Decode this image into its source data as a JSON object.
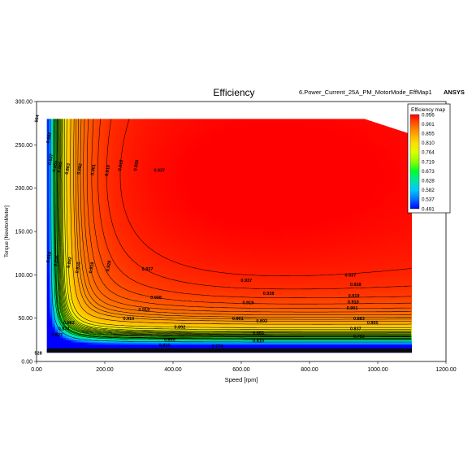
{
  "chart_data": {
    "type": "heatmap",
    "title": "Efficiency",
    "subtitle": "6.Power_Current_25A_PM_MotorMode_EffMap1",
    "brand": "ANSYS",
    "xlabel": "Speed [rpm]",
    "ylabel": "Torque [NewtonMeter]",
    "xlim": [
      0,
      1200
    ],
    "ylim": [
      0,
      300
    ],
    "xticks": [
      "0.00",
      "200.00",
      "400.00",
      "600.00",
      "800.00",
      "1000.00",
      "1200.00"
    ],
    "yticks": [
      "0.00",
      "50.00",
      "100.00",
      "150.00",
      "200.00",
      "250.00",
      "300.00"
    ],
    "grid": false,
    "legend": {
      "title": "Efficiency map",
      "placement": "top-right",
      "entries": [
        {
          "label": "0.956",
          "color": "#ff0000"
        },
        {
          "label": "0.901",
          "color": "#ff5a00"
        },
        {
          "label": "0.855",
          "color": "#ffa000"
        },
        {
          "label": "0.810",
          "color": "#ffdc00"
        },
        {
          "label": "0.764",
          "color": "#dcff00"
        },
        {
          "label": "0.719",
          "color": "#8cff00"
        },
        {
          "label": "0.673",
          "color": "#00ff28"
        },
        {
          "label": "0.628",
          "color": "#00e6a0"
        },
        {
          "label": "0.582",
          "color": "#00c8ff"
        },
        {
          "label": "0.537",
          "color": "#0070ff"
        },
        {
          "label": "0.491",
          "color": "#0000ff"
        }
      ]
    },
    "data_region": {
      "speed_range": [
        30,
        1100
      ],
      "torque_range": [
        10,
        280
      ],
      "max_torque_corner": {
        "speed": 960,
        "torque_start": 280,
        "speed_end": 1100,
        "torque_end": 262
      }
    },
    "contour_levels": [
      0.582,
      0.637,
      0.655,
      0.665,
      0.674,
      0.692,
      0.701,
      0.71,
      0.719,
      0.728,
      0.737,
      0.746,
      0.755,
      0.764,
      0.774,
      0.792,
      0.81,
      0.837,
      0.855,
      0.865,
      0.874,
      0.883,
      0.892,
      0.901,
      0.91,
      0.919,
      0.928,
      0.937
    ],
    "contour_labels": [
      {
        "text": "564",
        "speed": 5,
        "torque": 280
      },
      {
        "text": "0.582",
        "speed": 40,
        "torque": 258
      },
      {
        "text": "0.637",
        "speed": 45,
        "torque": 233
      },
      {
        "text": "0.855",
        "speed": 58,
        "torque": 225
      },
      {
        "text": "0.865",
        "speed": 72,
        "torque": 224
      },
      {
        "text": "0.883",
        "speed": 95,
        "torque": 222
      },
      {
        "text": "0.892",
        "speed": 130,
        "torque": 222
      },
      {
        "text": "0.901",
        "speed": 170,
        "torque": 221
      },
      {
        "text": "0.910",
        "speed": 212,
        "torque": 220
      },
      {
        "text": "0.919",
        "speed": 250,
        "torque": 226
      },
      {
        "text": "0.928",
        "speed": 296,
        "torque": 226
      },
      {
        "text": "0.937",
        "speed": 360,
        "torque": 219
      },
      {
        "text": "0.919",
        "speed": 40,
        "torque": 120
      },
      {
        "text": "0.855",
        "speed": 62,
        "torque": 116
      },
      {
        "text": "0.892",
        "speed": 100,
        "torque": 114
      },
      {
        "text": "0.910",
        "speed": 125,
        "torque": 108
      },
      {
        "text": "0.919",
        "speed": 165,
        "torque": 108
      },
      {
        "text": "0.928",
        "speed": 215,
        "torque": 110
      },
      {
        "text": "0.937",
        "speed": 325,
        "torque": 105
      },
      {
        "text": "0.937",
        "speed": 615,
        "torque": 92
      },
      {
        "text": "0.928",
        "speed": 680,
        "torque": 77
      },
      {
        "text": "0.919",
        "speed": 620,
        "torque": 66
      },
      {
        "text": "0.901",
        "speed": 590,
        "torque": 48
      },
      {
        "text": "0.893",
        "speed": 660,
        "torque": 45
      },
      {
        "text": "0.855",
        "speed": 650,
        "torque": 31
      },
      {
        "text": "0.810",
        "speed": 650,
        "torque": 22
      },
      {
        "text": "0.774",
        "speed": 530,
        "torque": 16
      },
      {
        "text": "0.928",
        "speed": 350,
        "torque": 72
      },
      {
        "text": "0.919",
        "speed": 315,
        "torque": 58
      },
      {
        "text": "0.910",
        "speed": 270,
        "torque": 48
      },
      {
        "text": "0.892",
        "speed": 420,
        "torque": 38
      },
      {
        "text": "0.865",
        "speed": 390,
        "torque": 24
      },
      {
        "text": "0.810",
        "speed": 375,
        "torque": 17
      },
      {
        "text": "0.892",
        "speed": 95,
        "torque": 43
      },
      {
        "text": "0.874",
        "speed": 80,
        "torque": 36
      },
      {
        "text": "0.827",
        "speed": 60,
        "torque": 29
      },
      {
        "text": "0.937",
        "speed": 920,
        "torque": 98
      },
      {
        "text": "0.928",
        "speed": 935,
        "torque": 87
      },
      {
        "text": "0.919",
        "speed": 930,
        "torque": 74
      },
      {
        "text": "0.910",
        "speed": 928,
        "torque": 67
      },
      {
        "text": "0.901",
        "speed": 925,
        "torque": 60
      },
      {
        "text": "0.883",
        "speed": 945,
        "torque": 48
      },
      {
        "text": "0.865",
        "speed": 985,
        "torque": 43
      },
      {
        "text": "0.837",
        "speed": 935,
        "torque": 36
      },
      {
        "text": "0.792",
        "speed": 945,
        "torque": 27
      },
      {
        "text": "528",
        "speed": 5,
        "torque": 8
      }
    ]
  }
}
